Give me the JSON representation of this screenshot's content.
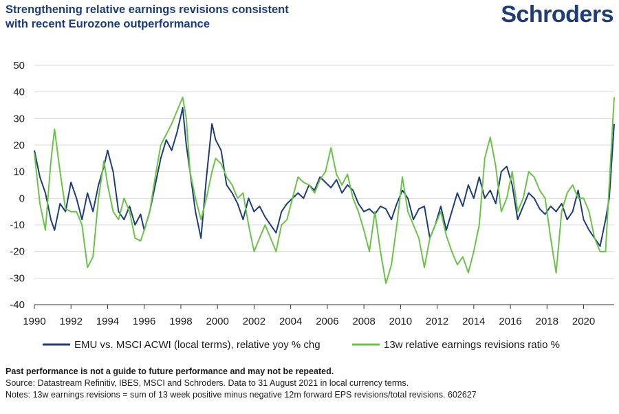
{
  "header": {
    "title_line1": "Strengthening relative earnings revisions consistent",
    "title_line2": "with recent Eurozone outperformance",
    "logo_text": "Schroders"
  },
  "footer": {
    "disclaimer": "Past performance is not a guide to future performance and may not be repeated.",
    "source": "Source: Datastream Refinitiv, IBES, MSCI and Schroders. Data to 31 August 2021 in local currency terms.",
    "notes": "Notes: 13w earnings revisions = sum of 13 week positive minus negative 12m forward EPS revisions/total revisions. 602627"
  },
  "chart_data": {
    "type": "line",
    "title": "Strengthening relative earnings revisions consistent with recent Eurozone outperformance",
    "xlabel": "",
    "ylabel": "",
    "xlim": [
      1990,
      2021.67
    ],
    "ylim": [
      -40,
      50
    ],
    "y_ticks": [
      50,
      40,
      30,
      20,
      10,
      0,
      -10,
      -20,
      -30,
      -40
    ],
    "x_ticks": [
      1990,
      1992,
      1994,
      1996,
      1998,
      2000,
      2002,
      2004,
      2006,
      2008,
      2010,
      2012,
      2014,
      2016,
      2018,
      2020
    ],
    "grid": true,
    "legend_position": "bottom",
    "series": [
      {
        "name": "EMU vs. MSCI ACWI (local terms), relative yoy % chg",
        "color": "#1e3c78",
        "x": [
          1990.0,
          1990.3,
          1990.6,
          1990.9,
          1991.1,
          1991.4,
          1991.7,
          1992.0,
          1992.3,
          1992.6,
          1992.9,
          1993.2,
          1993.5,
          1993.8,
          1994.0,
          1994.3,
          1994.6,
          1994.9,
          1995.2,
          1995.5,
          1995.8,
          1996.0,
          1996.3,
          1996.6,
          1996.9,
          1997.2,
          1997.5,
          1997.8,
          1998.1,
          1998.3,
          1998.5,
          1998.8,
          1999.1,
          1999.4,
          1999.7,
          1999.9,
          2000.2,
          2000.5,
          2000.8,
          2001.1,
          2001.4,
          2001.7,
          2002.0,
          2002.3,
          2002.6,
          2002.9,
          2003.2,
          2003.5,
          2003.8,
          2004.1,
          2004.4,
          2004.7,
          2005.0,
          2005.3,
          2005.6,
          2005.9,
          2006.2,
          2006.5,
          2006.8,
          2007.1,
          2007.4,
          2007.7,
          2008.0,
          2008.3,
          2008.6,
          2008.9,
          2009.2,
          2009.5,
          2009.8,
          2010.1,
          2010.4,
          2010.7,
          2011.0,
          2011.3,
          2011.6,
          2011.9,
          2012.2,
          2012.5,
          2012.8,
          2013.1,
          2013.4,
          2013.7,
          2014.0,
          2014.3,
          2014.6,
          2014.9,
          2015.2,
          2015.5,
          2015.8,
          2016.1,
          2016.4,
          2016.7,
          2017.0,
          2017.3,
          2017.6,
          2017.9,
          2018.2,
          2018.5,
          2018.8,
          2019.1,
          2019.4,
          2019.7,
          2020.0,
          2020.3,
          2020.6,
          2020.9,
          2021.2,
          2021.4,
          2021.67
        ],
        "values": [
          18,
          8,
          2,
          -8,
          -12,
          -2,
          -5,
          6,
          0,
          -8,
          2,
          -5,
          5,
          12,
          18,
          10,
          -5,
          -8,
          -3,
          -10,
          -6,
          -12,
          -5,
          5,
          15,
          22,
          18,
          25,
          34,
          20,
          10,
          -5,
          -15,
          8,
          28,
          22,
          18,
          5,
          2,
          -2,
          -8,
          0,
          -5,
          -3,
          -7,
          -10,
          -13,
          -5,
          -2,
          0,
          2,
          0,
          5,
          3,
          8,
          6,
          4,
          7,
          2,
          5,
          3,
          -2,
          -5,
          -4,
          -6,
          -3,
          -4,
          -8,
          -2,
          3,
          0,
          -8,
          -4,
          -3,
          -15,
          -10,
          -3,
          -12,
          -5,
          2,
          -3,
          5,
          0,
          8,
          0,
          3,
          -2,
          10,
          12,
          5,
          -8,
          -3,
          2,
          0,
          -4,
          -6,
          -3,
          -5,
          -2,
          -8,
          -5,
          3,
          -8,
          -12,
          -15,
          -18,
          -8,
          0,
          28
        ]
      },
      {
        "name": "13w relative earnings revisions ratio %",
        "color": "#6cc24a",
        "x": [
          1990.0,
          1990.3,
          1990.6,
          1990.9,
          1991.1,
          1991.4,
          1991.7,
          1992.0,
          1992.3,
          1992.6,
          1992.9,
          1993.2,
          1993.5,
          1993.8,
          1994.0,
          1994.3,
          1994.6,
          1994.9,
          1995.2,
          1995.5,
          1995.8,
          1996.0,
          1996.3,
          1996.6,
          1996.9,
          1997.2,
          1997.5,
          1997.8,
          1998.1,
          1998.3,
          1998.5,
          1998.8,
          1999.1,
          1999.4,
          1999.7,
          1999.9,
          2000.2,
          2000.5,
          2000.8,
          2001.1,
          2001.4,
          2001.7,
          2002.0,
          2002.3,
          2002.6,
          2002.9,
          2003.2,
          2003.5,
          2003.8,
          2004.1,
          2004.4,
          2004.7,
          2005.0,
          2005.3,
          2005.6,
          2005.9,
          2006.2,
          2006.5,
          2006.8,
          2007.1,
          2007.4,
          2007.7,
          2008.0,
          2008.3,
          2008.6,
          2008.9,
          2009.2,
          2009.5,
          2009.8,
          2010.1,
          2010.4,
          2010.7,
          2011.0,
          2011.3,
          2011.6,
          2011.9,
          2012.2,
          2012.5,
          2012.8,
          2013.1,
          2013.4,
          2013.7,
          2014.0,
          2014.3,
          2014.6,
          2014.9,
          2015.2,
          2015.5,
          2015.8,
          2016.1,
          2016.4,
          2016.7,
          2017.0,
          2017.3,
          2017.6,
          2017.9,
          2018.2,
          2018.5,
          2018.8,
          2019.1,
          2019.4,
          2019.7,
          2020.0,
          2020.3,
          2020.6,
          2020.9,
          2021.2,
          2021.4,
          2021.67
        ],
        "values": [
          17,
          -2,
          -12,
          14,
          26,
          10,
          -4,
          -5,
          -5,
          -10,
          -26,
          -22,
          0,
          14,
          5,
          -5,
          -8,
          0,
          -5,
          -15,
          -16,
          -12,
          -5,
          8,
          20,
          24,
          28,
          33,
          38,
          30,
          10,
          0,
          -8,
          0,
          10,
          15,
          13,
          8,
          5,
          0,
          2,
          -10,
          -20,
          -15,
          -10,
          -15,
          -20,
          -10,
          -8,
          0,
          8,
          6,
          5,
          2,
          7,
          10,
          19,
          9,
          5,
          9,
          0,
          -5,
          -12,
          -20,
          -5,
          -20,
          -32,
          -25,
          -10,
          8,
          -5,
          -10,
          -15,
          -26,
          -15,
          -10,
          -5,
          -14,
          -20,
          -25,
          -22,
          -28,
          -20,
          -10,
          15,
          23,
          12,
          -5,
          0,
          10,
          -5,
          0,
          10,
          8,
          3,
          0,
          -15,
          -28,
          -5,
          2,
          5,
          0,
          0,
          -5,
          -15,
          -20,
          -20,
          5,
          38
        ]
      }
    ]
  }
}
